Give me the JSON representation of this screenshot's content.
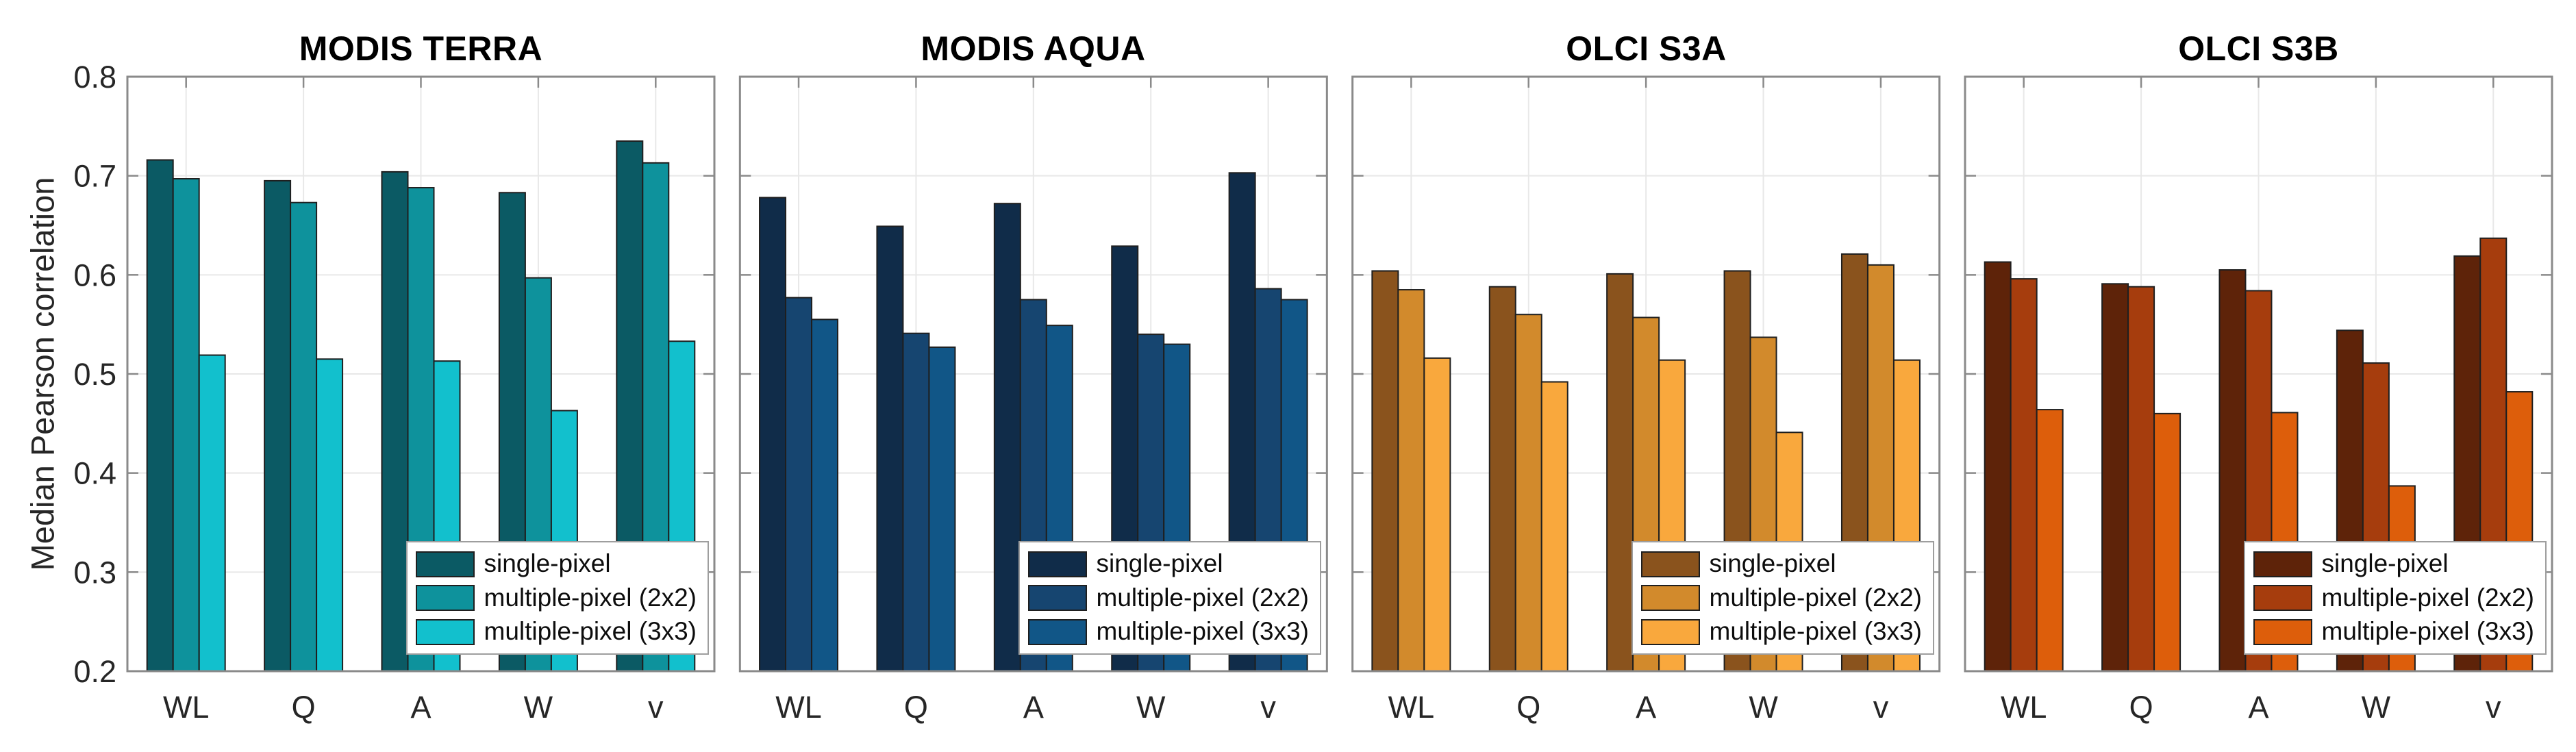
{
  "figure": {
    "background": "#ffffff",
    "axes_box_color": "#8a8a8a",
    "gridline_color": "#e8e8e8",
    "bar_edge_color": "#1f1f1f",
    "tick_label_color": "#262626"
  },
  "chart_data": {
    "type": "bar",
    "ylabel": "Median Pearson correlation",
    "ylim": [
      0.2,
      0.8
    ],
    "yticks": [
      0.2,
      0.3,
      0.4,
      0.5,
      0.6,
      0.7,
      0.8
    ],
    "categories": [
      "WL",
      "Q",
      "A",
      "W",
      "v"
    ],
    "series_names": [
      "single-pixel",
      "multiple-pixel (2x2)",
      "multiple-pixel (3x3)"
    ],
    "grid": true,
    "legend_position": "southeast",
    "panels": [
      {
        "title": "MODIS TERRA",
        "colors": [
          "#0b5a64",
          "#0e929c",
          "#12c0cd"
        ],
        "series": [
          {
            "name": "single-pixel",
            "values": [
              0.716,
              0.695,
              0.704,
              0.683,
              0.735
            ]
          },
          {
            "name": "multiple-pixel (2x2)",
            "values": [
              0.697,
              0.673,
              0.688,
              0.597,
              0.713
            ]
          },
          {
            "name": "multiple-pixel (3x3)",
            "values": [
              0.519,
              0.515,
              0.513,
              0.463,
              0.533
            ]
          }
        ]
      },
      {
        "title": "MODIS AQUA",
        "colors": [
          "#102c49",
          "#164570",
          "#115687"
        ],
        "series": [
          {
            "name": "single-pixel",
            "values": [
              0.678,
              0.649,
              0.672,
              0.629,
              0.703
            ]
          },
          {
            "name": "multiple-pixel (2x2)",
            "values": [
              0.577,
              0.541,
              0.575,
              0.54,
              0.586
            ]
          },
          {
            "name": "multiple-pixel (3x3)",
            "values": [
              0.555,
              0.527,
              0.549,
              0.53,
              0.575
            ]
          }
        ]
      },
      {
        "title": "OLCI S3A",
        "colors": [
          "#8a531d",
          "#d28a2c",
          "#f9a83d"
        ],
        "series": [
          {
            "name": "single-pixel",
            "values": [
              0.604,
              0.588,
              0.601,
              0.604,
              0.621
            ]
          },
          {
            "name": "multiple-pixel (2x2)",
            "values": [
              0.585,
              0.56,
              0.557,
              0.537,
              0.61
            ]
          },
          {
            "name": "multiple-pixel (3x3)",
            "values": [
              0.516,
              0.492,
              0.514,
              0.441,
              0.514
            ]
          }
        ]
      },
      {
        "title": "OLCI S3B",
        "colors": [
          "#5e2309",
          "#a63d0d",
          "#dd5e0b"
        ],
        "series": [
          {
            "name": "single-pixel",
            "values": [
              0.613,
              0.591,
              0.605,
              0.544,
              0.619
            ]
          },
          {
            "name": "multiple-pixel (2x2)",
            "values": [
              0.596,
              0.588,
              0.584,
              0.511,
              0.637
            ]
          },
          {
            "name": "multiple-pixel (3x3)",
            "values": [
              0.464,
              0.46,
              0.461,
              0.387,
              0.482
            ]
          }
        ]
      }
    ]
  }
}
